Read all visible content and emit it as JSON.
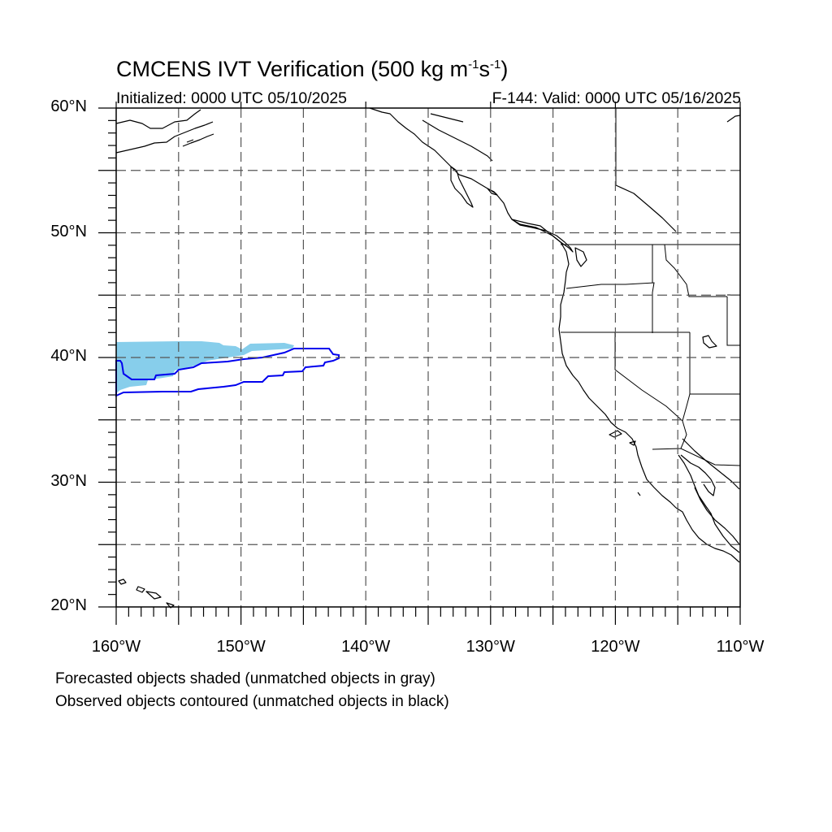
{
  "header": {
    "title_main": "CMCENS IVT Verification (500 kg m",
    "title_sup1": "-1",
    "title_mid": "s",
    "title_sup2": "-1",
    "title_end": ")",
    "initialized": "Initialized: 0000 UTC 05/10/2025",
    "valid": "F-144: Valid: 0000 UTC 05/16/2025"
  },
  "axes": {
    "lat_labels": [
      "60°N",
      "50°N",
      "40°N",
      "30°N",
      "20°N"
    ],
    "lon_labels": [
      "160°W",
      "150°W",
      "140°W",
      "130°W",
      "120°W",
      "110°W"
    ],
    "lat_range": [
      20,
      60
    ],
    "lon_range": [
      -160,
      -110
    ],
    "grid_spacing_deg": 5
  },
  "footer": {
    "forecast_note": "Forecasted objects shaded (unmatched objects in gray)",
    "observed_note": "Observed objects contoured (unmatched objects in black)"
  },
  "colors": {
    "forecast_fill": "#87ceeb",
    "observed_contour": "#0000ee",
    "coastline": "#000000",
    "grid": "#555555"
  }
}
